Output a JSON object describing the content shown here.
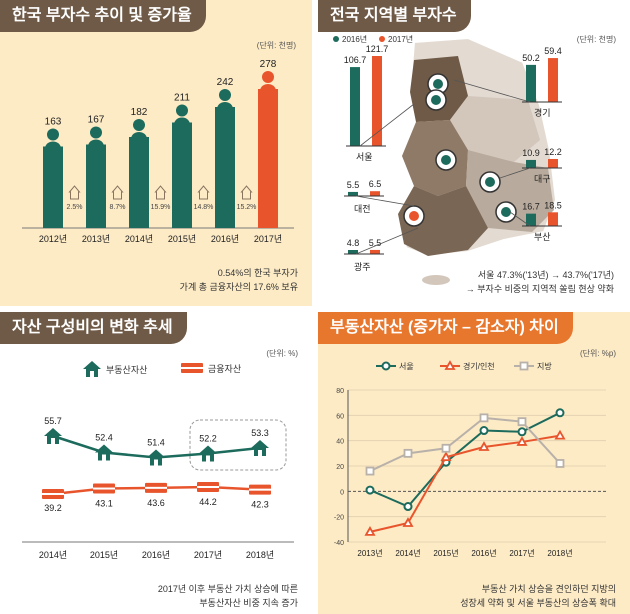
{
  "colors": {
    "teal": "#1c6b5c",
    "orange": "#e8552d",
    "brown": "#6f5a47",
    "title_orange": "#e8772e",
    "cream": "#fdebc6",
    "gray_line": "#b8b1aa"
  },
  "panels": {
    "p1": {
      "title": "한국 부자수 추이 및 증가율",
      "unit": "(단위: 천명)",
      "note_lines": [
        "0.54%의 한국 부자가",
        "가계 총 금융자산의 17.6% 보유"
      ],
      "chart_data": {
        "type": "bar",
        "categories": [
          "2012년",
          "2013년",
          "2014년",
          "2015년",
          "2016년",
          "2017년"
        ],
        "values": [
          163,
          167,
          182,
          211,
          242,
          278
        ],
        "value_labels": [
          "163",
          "167",
          "182",
          "211",
          "242",
          "278"
        ],
        "growth_rates": [
          "2.5%",
          "8.7%",
          "15.9%",
          "14.8%",
          "15.2%"
        ],
        "highlight_index": 5,
        "ylim": [
          0,
          300
        ]
      }
    },
    "p2": {
      "title": "전국 지역별 부자수",
      "unit": "(단위: 천명)",
      "legend": [
        {
          "label": "2016년",
          "color": "#1c6b5c"
        },
        {
          "label": "2017년",
          "color": "#e8552d"
        }
      ],
      "note_lines": [
        "서울 47.3%('13년) → 43.7%('17년)",
        "→ 부자수 비중의 지역적 쏠림 현상 약화"
      ],
      "chart_data": {
        "type": "bar",
        "series": [
          {
            "name": "2016년"
          },
          {
            "name": "2017년"
          }
        ],
        "regions": [
          {
            "name": "서울",
            "v2016": 106.7,
            "v2017": 121.7,
            "l2016": "106.7",
            "l2017": "121.7"
          },
          {
            "name": "경기",
            "v2016": 50.2,
            "v2017": 59.4,
            "l2016": "50.2",
            "l2017": "59.4"
          },
          {
            "name": "대구",
            "v2016": 10.9,
            "v2017": 12.2,
            "l2016": "10.9",
            "l2017": "12.2"
          },
          {
            "name": "대전",
            "v2016": 5.5,
            "v2017": 6.5,
            "l2016": "5.5",
            "l2017": "6.5"
          },
          {
            "name": "부산",
            "v2016": 16.7,
            "v2017": 18.5,
            "l2016": "16.7",
            "l2017": "18.5"
          },
          {
            "name": "광주",
            "v2016": 4.8,
            "v2017": 5.5,
            "l2016": "4.8",
            "l2017": "5.5"
          }
        ]
      }
    },
    "p3": {
      "title": "자산 구성비의 변화 추세",
      "unit": "(단위: %)",
      "legend": [
        {
          "label": "부동산자산",
          "color": "#1c6b5c"
        },
        {
          "label": "금융자산",
          "color": "#e8552d"
        }
      ],
      "note_lines": [
        "2017년 이후 부동산 가치 상승에 따른",
        "부동산자산 비중 지속 증가"
      ],
      "chart_data": {
        "type": "line",
        "x": [
          "2014년",
          "2015년",
          "2016년",
          "2017년",
          "2018년"
        ],
        "series": [
          {
            "name": "부동산자산",
            "values": [
              55.7,
              52.4,
              51.4,
              52.2,
              53.3
            ],
            "labels": [
              "55.7",
              "52.4",
              "51.4",
              "52.2",
              "53.3"
            ]
          },
          {
            "name": "금융자산",
            "values": [
              39.2,
              43.1,
              43.6,
              44.2,
              42.3
            ],
            "labels": [
              "39.2",
              "43.1",
              "43.6",
              "44.2",
              "42.3"
            ]
          }
        ]
      }
    },
    "p4": {
      "title": "부동산자산 (증가자 – 감소자) 차이",
      "unit": "(단위: %p)",
      "legend": [
        {
          "label": "서울",
          "color": "#1c6b5c"
        },
        {
          "label": "경기/인천",
          "color": "#e8552d"
        },
        {
          "label": "지방",
          "color": "#b8b1aa"
        }
      ],
      "note_lines": [
        "부동산 가치 상승을 견인하던 지방의",
        "성장세 약화 및 서울 부동산의 상승폭 확대"
      ],
      "chart_data": {
        "type": "line",
        "x": [
          "2013년",
          "2014년",
          "2015년",
          "2016년",
          "2017년",
          "2018년"
        ],
        "yticks": [
          "80",
          "60",
          "40",
          "20",
          "0",
          "-20",
          "-40"
        ],
        "ylim": [
          -40,
          80
        ],
        "series": [
          {
            "name": "서울",
            "values": [
              1,
              -12,
              23,
              48,
              47,
              62
            ]
          },
          {
            "name": "경기/인천",
            "values": [
              -32,
              -25,
              27,
              35,
              39,
              44
            ]
          },
          {
            "name": "지방",
            "values": [
              16,
              30,
              34,
              58,
              55,
              22
            ]
          }
        ]
      }
    }
  }
}
